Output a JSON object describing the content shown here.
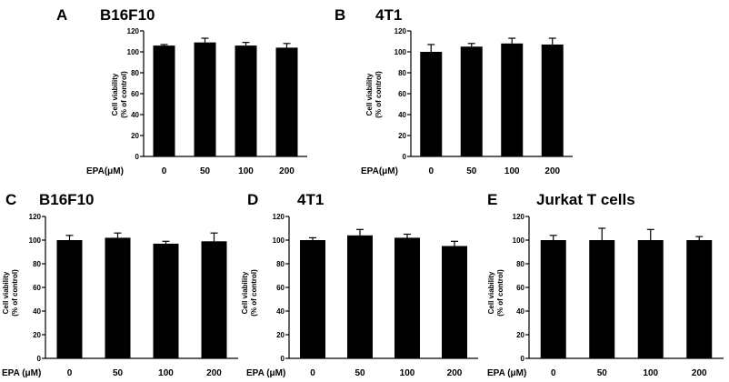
{
  "figure": {
    "panels": [
      {
        "letter": "A",
        "title": "B16F10"
      },
      {
        "letter": "B",
        "title": "4T1"
      },
      {
        "letter": "C",
        "title": "B16F10"
      },
      {
        "letter": "D",
        "title": "4T1"
      },
      {
        "letter": "E",
        "title": "Jurkat T  cells"
      }
    ]
  },
  "chart_data": [
    {
      "type": "bar",
      "title": "B16F10",
      "panel": "A",
      "categories": [
        "0",
        "50",
        "100",
        "200"
      ],
      "values": [
        106,
        109,
        106,
        104
      ],
      "errors": [
        1,
        4,
        3,
        4
      ],
      "xlabel": "EPA(μM)",
      "ylabel_line1": "Cell viability",
      "ylabel_line2": "(% of control)",
      "ylim": [
        0,
        120
      ],
      "yticks": [
        0,
        20,
        40,
        60,
        80,
        100,
        120
      ]
    },
    {
      "type": "bar",
      "title": "4T1",
      "panel": "B",
      "categories": [
        "0",
        "50",
        "100",
        "200"
      ],
      "values": [
        100,
        105,
        108,
        107
      ],
      "errors": [
        7,
        3,
        5,
        6
      ],
      "xlabel": "EPA(μM)",
      "ylabel_line1": "Cell viability",
      "ylabel_line2": "(% of control)",
      "ylim": [
        0,
        120
      ],
      "yticks": [
        0,
        20,
        40,
        60,
        80,
        100,
        120
      ]
    },
    {
      "type": "bar",
      "title": "B16F10",
      "panel": "C",
      "categories": [
        "0",
        "50",
        "100",
        "200"
      ],
      "values": [
        100,
        102,
        97,
        99
      ],
      "errors": [
        4,
        4,
        2,
        7
      ],
      "xlabel": "EPA (μM)",
      "ylabel_line1": "Cell viability",
      "ylabel_line2": "(% of control)",
      "ylim": [
        0,
        120
      ],
      "yticks": [
        0,
        20,
        40,
        60,
        80,
        100,
        120
      ]
    },
    {
      "type": "bar",
      "title": "4T1",
      "panel": "D",
      "categories": [
        "0",
        "50",
        "100",
        "200"
      ],
      "values": [
        100,
        104,
        102,
        95
      ],
      "errors": [
        2,
        5,
        3,
        4
      ],
      "xlabel": "EPA (μM)",
      "ylabel_line1": "Cell viability",
      "ylabel_line2": "(% of control)",
      "ylim": [
        0,
        120
      ],
      "yticks": [
        0,
        20,
        40,
        60,
        80,
        100,
        120
      ]
    },
    {
      "type": "bar",
      "title": "Jurkat T  cells",
      "panel": "E",
      "categories": [
        "0",
        "50",
        "100",
        "200"
      ],
      "values": [
        100,
        100,
        100,
        100
      ],
      "errors": [
        4,
        10,
        9,
        3
      ],
      "xlabel": "EPA (μM)",
      "ylabel_line1": "Cell viability",
      "ylabel_line2": "(% of control)",
      "ylim": [
        0,
        120
      ],
      "yticks": [
        0,
        20,
        40,
        60,
        80,
        100,
        120
      ]
    }
  ],
  "colors": {
    "bar": "#000000",
    "axis": "#000000"
  }
}
